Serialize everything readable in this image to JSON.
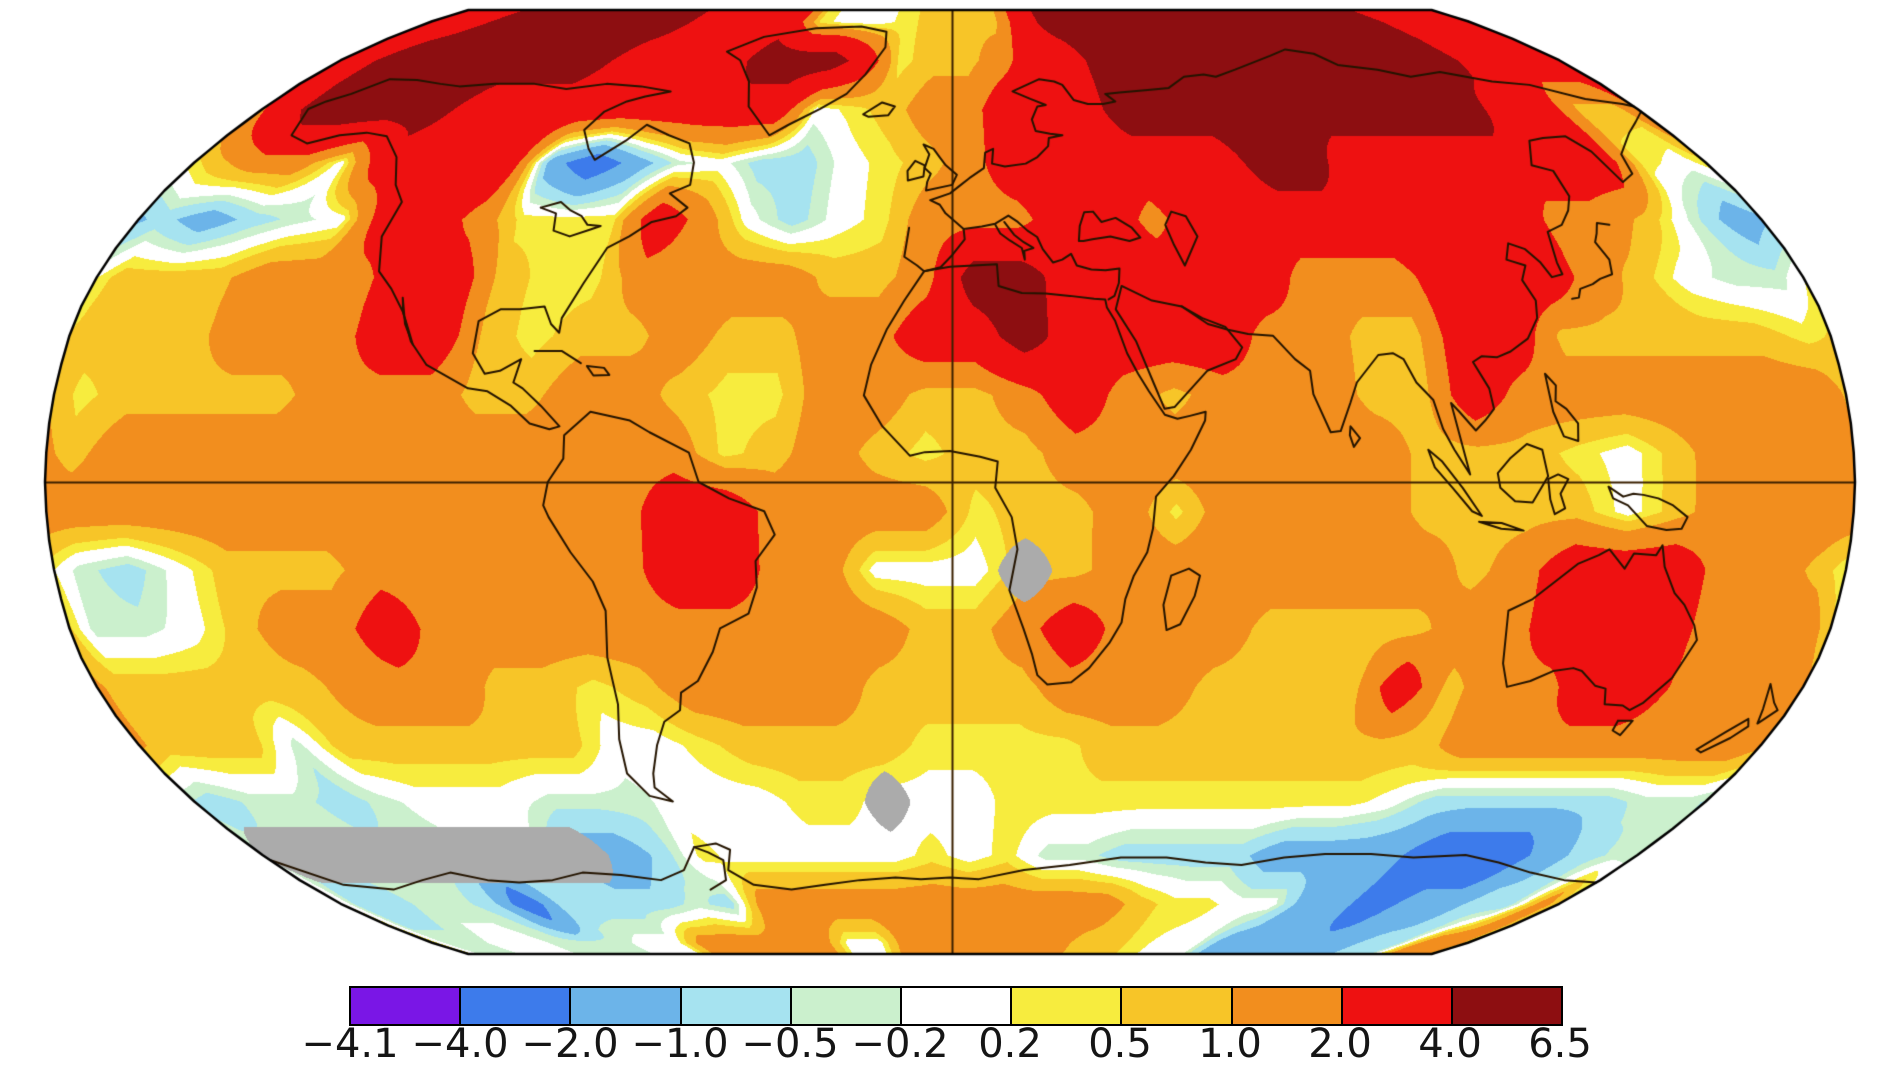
{
  "figure": {
    "background": "#ffffff"
  },
  "chart_data": {
    "type": "heatmap",
    "title": "",
    "projection": "robinson-world-map",
    "legend_position": "bottom",
    "colorbar": {
      "tick_labels": [
        "−4.1",
        "−4.0",
        "−2.0",
        "−1.0",
        "−0.5",
        "−0.2",
        "0.2",
        "0.5",
        "1.0",
        "2.0",
        "4.0",
        "6.5"
      ],
      "colors": [
        "#7A16E6",
        "#3D7BEB",
        "#6CB4E9",
        "#A6E3F0",
        "#CBF0CD",
        "#FFFFFF",
        "#F7EC3E",
        "#F7C528",
        "#F28E1E",
        "#EE1111",
        "#8D0E11"
      ],
      "missing_color": "#ABABAB"
    },
    "grid": {
      "comment": "Temperature-anomaly field sampled on a 10-degree grid, read from the map colors. Letters map to representative values of each colorbar bin; G = gray (no data).",
      "lat_start": 85,
      "lat_step": -10,
      "lon_start": -175,
      "lon_step": 10,
      "value_key": {
        "m": 5,
        "r": 3,
        "o": 1.5,
        "g": 0.75,
        "y": 0.35,
        "w": 0,
        "c": -0.35,
        "t": -0.75,
        "b": -1.5,
        "B": -3,
        "P": -4.05,
        "G": null
      },
      "rows": [
        "rrmmmmmmmrrrrywwygggrmmmmmmmmmmmmrrr",
        "rmmmmmmmrrrrmmmryggorrmmmmmmmmmmmrrr",
        "rmmmmrrrrrrrrrwygoorrrmmmmmmmmmmrrgg",
        "goowrrrrbBbcwttwygorrrrrrmmrrrrrrryw",
        "tbtcwrroyyyrowtwyooorrorrrrrrrroogcb",
        "gggooorrgyyooooggommrrrrrooorrrogwcc",
        "gggooorrgyggoggoorrmrrrrooggrrgggggy",
        "yggggoooggoogyyooggorogoooggrooooooo",
        "gooooooooooooygogyggooooooogggywgooo",
        "oooooooooooorrooooyggoyooooggggwgooo",
        "ctwgggoooooorroowwwGgooooooogorrroog",
        "ccwgoorooooooooooggoroooggggoorrrooo",
        "gggggoooggygooooggggoooggggrgoorrooo",
        "gggcggggggwwyggggyyyyggggggggooooooo",
        "tcctcwwwcccwwwyyGwwyyyyyyyyywtttttcc",
        "GGGGGGGGGbtywwwwwywyccttttbbbbBBBbtc",
        "ttcctBttttctooooooooooogyywwbbBbbtto",
        "ccwwcccwwooooowwooooooggywwbbbbbttoo"
      ]
    }
  },
  "map_style": {
    "outline_color": "#000000",
    "coastline_color": "#241400",
    "gridline_color": "#3A2000"
  }
}
